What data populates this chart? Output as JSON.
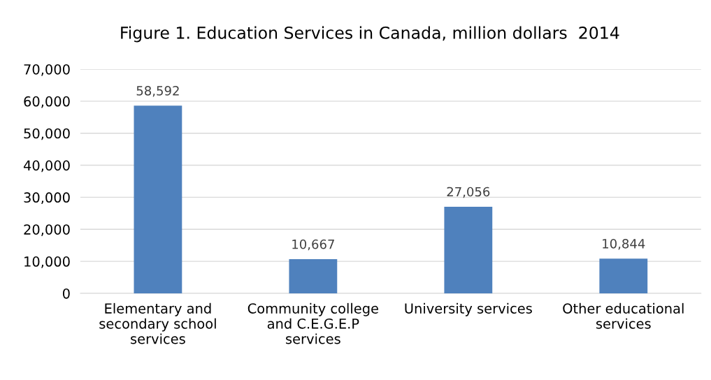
{
  "chart_data": {
    "type": "bar",
    "title": "Figure 1. Education Services in Canada, million dollars  2014",
    "categories": [
      "Elementary and\nsecondary school\nservices",
      "Community college\nand C.E.G.E.P\nservices",
      "University services",
      "Other educational\nservices"
    ],
    "values": [
      58592,
      10667,
      27056,
      10844
    ],
    "value_labels": [
      "58,592",
      "10,667",
      "27,056",
      "10,844"
    ],
    "color": "#4f81bd",
    "ylim": [
      0,
      70000
    ],
    "yticks": [
      {
        "value": 0,
        "label": "0"
      },
      {
        "value": 10000,
        "label": "10,000"
      },
      {
        "value": 20000,
        "label": "20,000"
      },
      {
        "value": 30000,
        "label": "30,000"
      },
      {
        "value": 40000,
        "label": "40,000"
      },
      {
        "value": 50000,
        "label": "50,000"
      },
      {
        "value": 60000,
        "label": "60,000"
      },
      {
        "value": 70000,
        "label": "70,000"
      }
    ],
    "grid": "y"
  }
}
